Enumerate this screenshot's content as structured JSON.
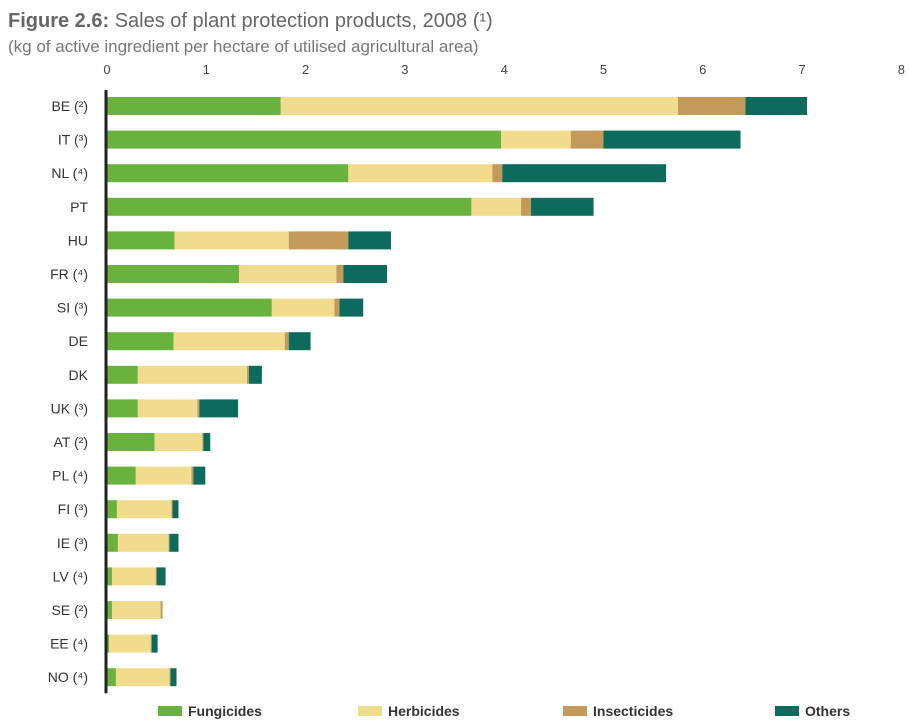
{
  "figure": {
    "label": "Figure 2.6:",
    "title": "Sales of plant protection products, 2008 (¹)",
    "subtitle": "(kg of active ingredient per hectare of utilised agricultural area)"
  },
  "chart_data": {
    "type": "bar",
    "orientation": "horizontal",
    "stacked": true,
    "categories": [
      "BE (²)",
      "IT (³)",
      "NL (⁴)",
      "PT",
      "HU",
      "FR (⁴)",
      "SI (³)",
      "DE",
      "DK",
      "UK (³)",
      "AT (²)",
      "PL (⁴)",
      "FI (³)",
      "IE (³)",
      "LV (⁴)",
      "SE (²)",
      "EE (⁴)",
      "NO (⁴)"
    ],
    "series": [
      {
        "name": "Fungicides",
        "color": "#6ab23e",
        "values": [
          1.75,
          3.97,
          2.43,
          3.67,
          0.68,
          1.33,
          1.66,
          0.67,
          0.31,
          0.31,
          0.48,
          0.29,
          0.1,
          0.11,
          0.05,
          0.05,
          0.02,
          0.09
        ]
      },
      {
        "name": "Herbicides",
        "color": "#f0dc8c",
        "values": [
          4.0,
          0.7,
          1.45,
          0.5,
          1.15,
          0.98,
          0.63,
          1.12,
          1.1,
          0.6,
          0.48,
          0.56,
          0.55,
          0.51,
          0.44,
          0.49,
          0.42,
          0.54
        ]
      },
      {
        "name": "Insecticides",
        "color": "#c49a5a",
        "values": [
          0.68,
          0.33,
          0.1,
          0.1,
          0.6,
          0.07,
          0.05,
          0.04,
          0.02,
          0.02,
          0.01,
          0.02,
          0.01,
          0.01,
          0.01,
          0.02,
          0.01,
          0.01
        ]
      },
      {
        "name": "Others",
        "color": "#0d6b5e",
        "values": [
          0.62,
          1.38,
          1.65,
          0.63,
          0.43,
          0.44,
          0.24,
          0.22,
          0.13,
          0.39,
          0.07,
          0.12,
          0.06,
          0.09,
          0.09,
          0.0,
          0.06,
          0.06
        ]
      }
    ],
    "xlim": [
      0,
      8
    ],
    "xticks": [
      0,
      1,
      2,
      3,
      4,
      5,
      6,
      7,
      8
    ],
    "xaxis_position": "top",
    "grid": false,
    "legend_position": "bottom"
  }
}
